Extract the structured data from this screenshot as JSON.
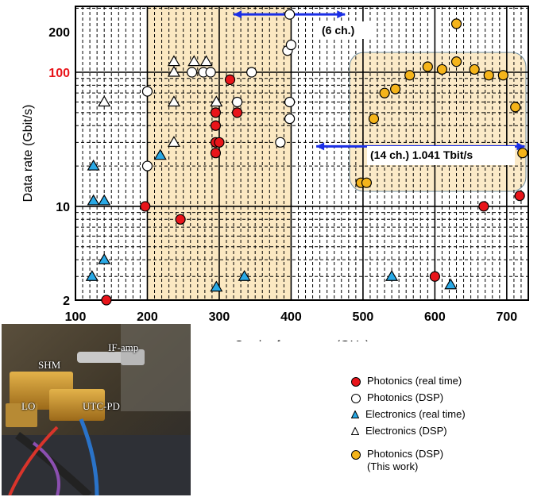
{
  "chart_data": {
    "type": "scatter",
    "xlabel": "Carrier frequency (GHz)",
    "ylabel": "Data rate (Gbit/s)",
    "xlim": [
      100,
      730
    ],
    "ylim": [
      2,
      310
    ],
    "y_scale": "log",
    "x_ticks": [
      "100",
      "200",
      "300",
      "400",
      "500",
      "600",
      "700"
    ],
    "x_tick_values": [
      100,
      200,
      300,
      400,
      500,
      600,
      700
    ],
    "y_ticks": [
      "2",
      "10",
      "100",
      "200"
    ],
    "y_tick_values": [
      2,
      10,
      100,
      200
    ],
    "highlight_y_tick": "100",
    "grid": true,
    "legend_position": "bottom-right",
    "shaded_bands_x": [
      [
        200,
        300
      ],
      [
        300,
        400
      ]
    ],
    "series": [
      {
        "name": "Photonics (real time)",
        "marker": "circle",
        "color": "#e8141a",
        "points": [
          [
            143,
            2
          ],
          [
            197,
            10
          ],
          [
            246,
            8
          ],
          [
            295,
            50
          ],
          [
            295,
            40
          ],
          [
            295,
            30
          ],
          [
            295,
            25
          ],
          [
            300,
            30
          ],
          [
            315,
            88
          ],
          [
            325,
            50
          ],
          [
            600,
            3
          ],
          [
            668,
            10
          ],
          [
            718,
            12
          ]
        ]
      },
      {
        "name": "Photonics (DSP)",
        "marker": "circle",
        "color": "#ffffff",
        "points": [
          [
            200,
            72
          ],
          [
            200,
            20
          ],
          [
            262,
            100
          ],
          [
            278,
            100
          ],
          [
            288,
            100
          ],
          [
            325,
            60
          ],
          [
            345,
            100
          ],
          [
            385,
            30
          ],
          [
            395,
            145
          ],
          [
            400,
            160
          ],
          [
            398,
            270
          ],
          [
            398,
            60
          ],
          [
            398,
            45
          ]
        ]
      },
      {
        "name": "Electronics (real time)",
        "marker": "triangle",
        "color": "#29a9e6",
        "points": [
          [
            125,
            20
          ],
          [
            125,
            11
          ],
          [
            140,
            11
          ],
          [
            140,
            4
          ],
          [
            123,
            3
          ],
          [
            218,
            24
          ],
          [
            296,
            2.5
          ],
          [
            335,
            3
          ],
          [
            540,
            3
          ],
          [
            622,
            2.6
          ]
        ]
      },
      {
        "name": "Electronics (DSP)",
        "marker": "triangle",
        "color": "#ffffff",
        "points": [
          [
            140,
            60
          ],
          [
            237,
            120
          ],
          [
            237,
            100
          ],
          [
            237,
            60
          ],
          [
            237,
            30
          ],
          [
            265,
            120
          ],
          [
            282,
            120
          ],
          [
            296,
            60
          ]
        ]
      },
      {
        "name": "Photonics (DSP)\n(This work)",
        "marker": "circle",
        "color": "#f5b41a",
        "points": [
          [
            497,
            15
          ],
          [
            505,
            15
          ],
          [
            515,
            45
          ],
          [
            530,
            70
          ],
          [
            545,
            75
          ],
          [
            565,
            95
          ],
          [
            590,
            110
          ],
          [
            610,
            105
          ],
          [
            630,
            230
          ],
          [
            630,
            120
          ],
          [
            655,
            105
          ],
          [
            675,
            95
          ],
          [
            695,
            95
          ],
          [
            712,
            55
          ],
          [
            722,
            25
          ]
        ]
      }
    ],
    "annotations": [
      {
        "text": "(6 ch.)",
        "arrow_x": [
          320,
          475
        ],
        "arrow_y": 270
      },
      {
        "text": "(14 ch.) 1.041 Tbit/s",
        "arrow_x": [
          435,
          725
        ],
        "arrow_y": 28
      }
    ]
  },
  "photo_labels": {
    "if_amp": "IF-amp",
    "shm": "SHM",
    "lo": "LO",
    "utc_pd": "UTC-PD"
  },
  "legend": [
    {
      "text": "Photonics (real time)",
      "marker": "circle",
      "color": "#e8141a"
    },
    {
      "text": "Photonics (DSP)",
      "marker": "circle",
      "color": "#ffffff"
    },
    {
      "text": "Electronics (real time)",
      "marker": "triangle",
      "color": "#29a9e6"
    },
    {
      "text": "Electronics (DSP)",
      "marker": "triangle",
      "color": "#ffffff"
    },
    {
      "text": "Photonics (DSP)",
      "text2": "(This work)",
      "marker": "circle",
      "color": "#f5b41a"
    }
  ],
  "colors": {
    "band": "#fbe8c2",
    "highlight_tick": "#e8141a",
    "arrow": "#1a2ee6"
  }
}
